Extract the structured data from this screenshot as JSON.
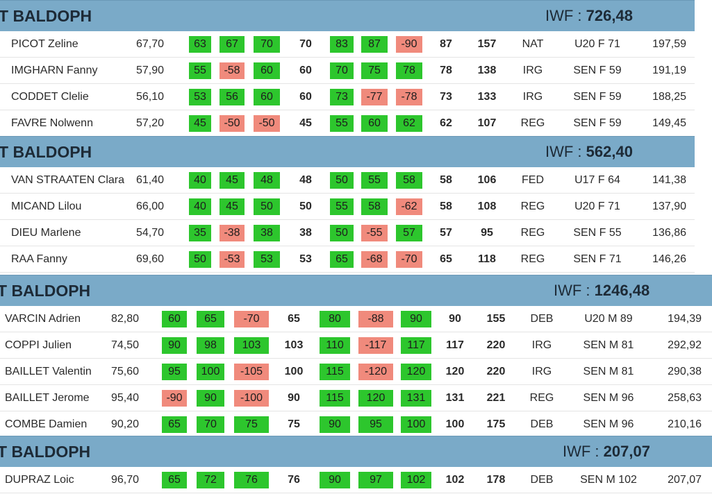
{
  "teams": [
    {
      "name": "T BALDOPH",
      "iwf_label": "IWF :",
      "iwf_value": "726,48",
      "athletes": [
        {
          "name": "PICOT Zeline",
          "bw": "67,70",
          "snatch": [
            {
              "v": "63",
              "ok": true
            },
            {
              "v": "67",
              "ok": true
            },
            {
              "v": "70",
              "ok": true
            }
          ],
          "best_snatch": "70",
          "cj": [
            {
              "v": "83",
              "ok": true
            },
            {
              "v": "87",
              "ok": true
            },
            {
              "v": "-90",
              "ok": false
            }
          ],
          "best_cj": "87",
          "total": "157",
          "level": "NAT",
          "category": "U20 F 71",
          "iwf": "197,59"
        },
        {
          "name": "IMGHARN Fanny",
          "bw": "57,90",
          "snatch": [
            {
              "v": "55",
              "ok": true
            },
            {
              "v": "-58",
              "ok": false
            },
            {
              "v": "60",
              "ok": true
            }
          ],
          "best_snatch": "60",
          "cj": [
            {
              "v": "70",
              "ok": true
            },
            {
              "v": "75",
              "ok": true
            },
            {
              "v": "78",
              "ok": true
            }
          ],
          "best_cj": "78",
          "total": "138",
          "level": "IRG",
          "category": "SEN F 59",
          "iwf": "191,19"
        },
        {
          "name": "CODDET Clelie",
          "bw": "56,10",
          "snatch": [
            {
              "v": "53",
              "ok": true
            },
            {
              "v": "56",
              "ok": true
            },
            {
              "v": "60",
              "ok": true
            }
          ],
          "best_snatch": "60",
          "cj": [
            {
              "v": "73",
              "ok": true
            },
            {
              "v": "-77",
              "ok": false
            },
            {
              "v": "-78",
              "ok": false
            }
          ],
          "best_cj": "73",
          "total": "133",
          "level": "IRG",
          "category": "SEN F 59",
          "iwf": "188,25"
        },
        {
          "name": "FAVRE Nolwenn",
          "bw": "57,20",
          "snatch": [
            {
              "v": "45",
              "ok": true
            },
            {
              "v": "-50",
              "ok": false
            },
            {
              "v": "-50",
              "ok": false
            }
          ],
          "best_snatch": "45",
          "cj": [
            {
              "v": "55",
              "ok": true
            },
            {
              "v": "60",
              "ok": true
            },
            {
              "v": "62",
              "ok": true
            }
          ],
          "best_cj": "62",
          "total": "107",
          "level": "REG",
          "category": "SEN F 59",
          "iwf": "149,45"
        }
      ]
    },
    {
      "name": "T BALDOPH",
      "iwf_label": "IWF :",
      "iwf_value": "562,40",
      "athletes": [
        {
          "name": "VAN STRAATEN Clara",
          "bw": "61,40",
          "snatch": [
            {
              "v": "40",
              "ok": true
            },
            {
              "v": "45",
              "ok": true
            },
            {
              "v": "48",
              "ok": true
            }
          ],
          "best_snatch": "48",
          "cj": [
            {
              "v": "50",
              "ok": true
            },
            {
              "v": "55",
              "ok": true
            },
            {
              "v": "58",
              "ok": true
            }
          ],
          "best_cj": "58",
          "total": "106",
          "level": "FED",
          "category": "U17 F 64",
          "iwf": "141,38"
        },
        {
          "name": "MICAND Lilou",
          "bw": "66,00",
          "snatch": [
            {
              "v": "40",
              "ok": true
            },
            {
              "v": "45",
              "ok": true
            },
            {
              "v": "50",
              "ok": true
            }
          ],
          "best_snatch": "50",
          "cj": [
            {
              "v": "55",
              "ok": true
            },
            {
              "v": "58",
              "ok": true
            },
            {
              "v": "-62",
              "ok": false
            }
          ],
          "best_cj": "58",
          "total": "108",
          "level": "REG",
          "category": "U20 F 71",
          "iwf": "137,90"
        },
        {
          "name": "DIEU Marlene",
          "bw": "54,70",
          "snatch": [
            {
              "v": "35",
              "ok": true
            },
            {
              "v": "-38",
              "ok": false
            },
            {
              "v": "38",
              "ok": true
            }
          ],
          "best_snatch": "38",
          "cj": [
            {
              "v": "50",
              "ok": true
            },
            {
              "v": "-55",
              "ok": false
            },
            {
              "v": "57",
              "ok": true
            }
          ],
          "best_cj": "57",
          "total": "95",
          "level": "REG",
          "category": "SEN F 55",
          "iwf": "136,86"
        },
        {
          "name": "RAA Fanny",
          "bw": "69,60",
          "snatch": [
            {
              "v": "50",
              "ok": true
            },
            {
              "v": "-53",
              "ok": false
            },
            {
              "v": "53",
              "ok": true
            }
          ],
          "best_snatch": "53",
          "cj": [
            {
              "v": "65",
              "ok": true
            },
            {
              "v": "-68",
              "ok": false
            },
            {
              "v": "-70",
              "ok": false
            }
          ],
          "best_cj": "65",
          "total": "118",
          "level": "REG",
          "category": "SEN F 71",
          "iwf": "146,26"
        }
      ]
    },
    {
      "name": "T BALDOPH",
      "iwf_label": "IWF :",
      "iwf_value": "1246,48",
      "athletes": [
        {
          "name": "VARCIN Adrien",
          "bw": "82,80",
          "snatch": [
            {
              "v": "60",
              "ok": true
            },
            {
              "v": "65",
              "ok": true
            },
            {
              "v": "-70",
              "ok": false
            }
          ],
          "best_snatch": "65",
          "cj": [
            {
              "v": "80",
              "ok": true
            },
            {
              "v": "-88",
              "ok": false
            },
            {
              "v": "90",
              "ok": true
            }
          ],
          "best_cj": "90",
          "total": "155",
          "level": "DEB",
          "category": "U20 M 89",
          "iwf": "194,39"
        },
        {
          "name": "COPPI Julien",
          "bw": "74,50",
          "snatch": [
            {
              "v": "90",
              "ok": true
            },
            {
              "v": "98",
              "ok": true
            },
            {
              "v": "103",
              "ok": true
            }
          ],
          "best_snatch": "103",
          "cj": [
            {
              "v": "110",
              "ok": true
            },
            {
              "v": "-117",
              "ok": false
            },
            {
              "v": "117",
              "ok": true
            }
          ],
          "best_cj": "117",
          "total": "220",
          "level": "IRG",
          "category": "SEN M 81",
          "iwf": "292,92"
        },
        {
          "name": "BAILLET Valentin",
          "bw": "75,60",
          "snatch": [
            {
              "v": "95",
              "ok": true
            },
            {
              "v": "100",
              "ok": true
            },
            {
              "v": "-105",
              "ok": false
            }
          ],
          "best_snatch": "100",
          "cj": [
            {
              "v": "115",
              "ok": true
            },
            {
              "v": "-120",
              "ok": false
            },
            {
              "v": "120",
              "ok": true
            }
          ],
          "best_cj": "120",
          "total": "220",
          "level": "IRG",
          "category": "SEN M 81",
          "iwf": "290,38"
        },
        {
          "name": "BAILLET Jerome",
          "bw": "95,40",
          "snatch": [
            {
              "v": "-90",
              "ok": false
            },
            {
              "v": "90",
              "ok": true
            },
            {
              "v": "-100",
              "ok": false
            }
          ],
          "best_snatch": "90",
          "cj": [
            {
              "v": "115",
              "ok": true
            },
            {
              "v": "120",
              "ok": true
            },
            {
              "v": "131",
              "ok": true
            }
          ],
          "best_cj": "131",
          "total": "221",
          "level": "REG",
          "category": "SEN M 96",
          "iwf": "258,63"
        },
        {
          "name": "COMBE Damien",
          "bw": "90,20",
          "snatch": [
            {
              "v": "65",
              "ok": true
            },
            {
              "v": "70",
              "ok": true
            },
            {
              "v": "75",
              "ok": true
            }
          ],
          "best_snatch": "75",
          "cj": [
            {
              "v": "90",
              "ok": true
            },
            {
              "v": "95",
              "ok": true
            },
            {
              "v": "100",
              "ok": true
            }
          ],
          "best_cj": "100",
          "total": "175",
          "level": "DEB",
          "category": "SEN M 96",
          "iwf": "210,16"
        }
      ]
    },
    {
      "name": "T BALDOPH",
      "iwf_label": "IWF :",
      "iwf_value": "207,07",
      "athletes": [
        {
          "name": "DUPRAZ Loic",
          "bw": "96,70",
          "snatch": [
            {
              "v": "65",
              "ok": true
            },
            {
              "v": "72",
              "ok": true
            },
            {
              "v": "76",
              "ok": true
            }
          ],
          "best_snatch": "76",
          "cj": [
            {
              "v": "90",
              "ok": true
            },
            {
              "v": "97",
              "ok": true
            },
            {
              "v": "102",
              "ok": true
            }
          ],
          "best_cj": "102",
          "total": "178",
          "level": "DEB",
          "category": "SEN M 102",
          "iwf": "207,07"
        }
      ]
    }
  ],
  "colors": {
    "header_bg": "#7aaac8",
    "success": "#2dc62d",
    "fail": "#f08a7c"
  }
}
